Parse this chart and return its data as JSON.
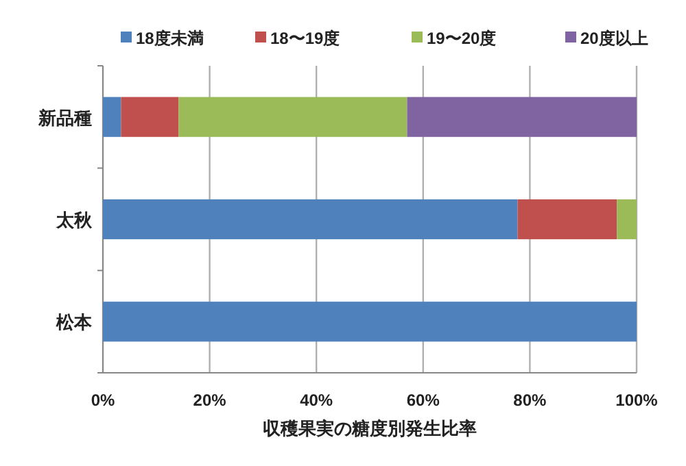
{
  "chart_data": {
    "type": "bar",
    "orientation": "horizontal",
    "stacked": true,
    "xlabel": "収穫果実の糖度別発生比率",
    "categories": [
      "新品種",
      "太秋",
      "松本"
    ],
    "series": [
      {
        "name": "18度未満",
        "color": "#4f81bd",
        "values": [
          3.4,
          77.7,
          100
        ]
      },
      {
        "name": "18〜19度",
        "color": "#c0504d",
        "values": [
          10.8,
          18.6,
          0
        ]
      },
      {
        "name": "19〜20度",
        "color": "#9bbb59",
        "values": [
          42.8,
          3.7,
          0
        ]
      },
      {
        "name": "20度以上",
        "color": "#8064a2",
        "values": [
          43.0,
          0,
          0
        ]
      }
    ],
    "xlim": [
      0,
      100
    ],
    "xticks": [
      {
        "value": 0,
        "label": "0%"
      },
      {
        "value": 20,
        "label": "20%"
      },
      {
        "value": 40,
        "label": "40%"
      },
      {
        "value": 60,
        "label": "60%"
      },
      {
        "value": 80,
        "label": "80%"
      },
      {
        "value": 100,
        "label": "100%"
      }
    ],
    "grid": "x",
    "legend": "top"
  }
}
